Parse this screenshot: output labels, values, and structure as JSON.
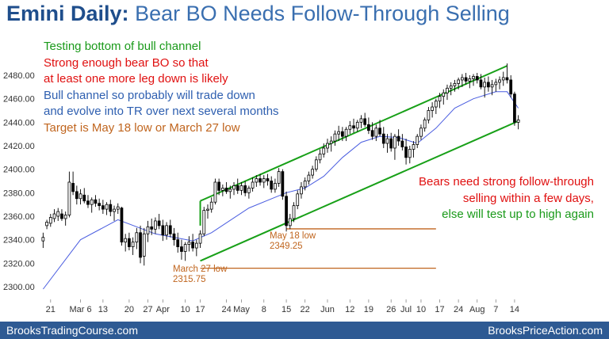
{
  "slide": {
    "title_bold": "Emini Daily:",
    "title_rest": "Bear BO Needs Follow-Through Selling",
    "footer_left": "BrooksTradingCourse.com",
    "footer_right": "BrooksPriceAction.com",
    "annotations": [
      {
        "text": "Testing bottom of bull channel",
        "color": "#1a9a1a"
      },
      {
        "text": "Strong enough bear BO so that",
        "color": "#e01010"
      },
      {
        "text": "at least one more leg down is likely",
        "color": "#e01010"
      },
      {
        "text": "Bull channel so probably will trade down",
        "color": "#2e5fb0"
      },
      {
        "text": "and evolve into TR over next several months",
        "color": "#2e5fb0"
      },
      {
        "text": "Target is May 18 low or March 27 low",
        "color": "#c0651e"
      }
    ],
    "right_notes": [
      {
        "text": "Bears need strong follow-through",
        "color": "#e01010"
      },
      {
        "text": "selling within a few days,",
        "color": "#e01010"
      },
      {
        "text": "else will test up to high again",
        "color": "#1a9a1a"
      }
    ],
    "level_labels": {
      "may18_name": "May 18 low",
      "may18_value": "2349.25",
      "mar27_name": "March 27 low",
      "mar27_value": "2315.75"
    }
  },
  "chart_data": {
    "type": "candlestick",
    "title": "",
    "ylim": [
      2292,
      2500
    ],
    "yticks": [
      "2300.00",
      "2320.00",
      "2340.00",
      "2360.00",
      "2380.00",
      "2400.00",
      "2420.00",
      "2440.00",
      "2460.00",
      "2480.00"
    ],
    "xticks": [
      "21",
      "Mar 6",
      "13",
      "20",
      "27",
      "Apr",
      "10",
      "17",
      "24",
      "May",
      "8",
      "15",
      "22",
      "Jun",
      "12",
      "19",
      "26",
      "Jul",
      "10",
      "17",
      "24",
      "Aug",
      "7",
      "14"
    ],
    "xtick_bar_index": [
      2,
      10,
      16,
      23,
      28,
      32,
      38,
      42,
      49,
      53,
      59,
      65,
      70,
      76,
      82,
      87,
      93,
      97,
      101,
      106,
      111,
      116,
      121,
      126
    ],
    "ohlc": [
      [
        2339,
        2346,
        2333,
        2342
      ],
      [
        2352,
        2357,
        2349,
        2355
      ],
      [
        2354,
        2362,
        2351,
        2359
      ],
      [
        2358,
        2366,
        2355,
        2362
      ],
      [
        2360,
        2367,
        2356,
        2364
      ],
      [
        2362,
        2366,
        2356,
        2358
      ],
      [
        2358,
        2364,
        2352,
        2361
      ],
      [
        2361,
        2398,
        2359,
        2389
      ],
      [
        2388,
        2398,
        2378,
        2381
      ],
      [
        2381,
        2386,
        2370,
        2375
      ],
      [
        2375,
        2383,
        2370,
        2379
      ],
      [
        2378,
        2384,
        2371,
        2373
      ],
      [
        2373,
        2378,
        2367,
        2370
      ],
      [
        2370,
        2376,
        2363,
        2374
      ],
      [
        2374,
        2378,
        2368,
        2371
      ],
      [
        2371,
        2375,
        2365,
        2369
      ],
      [
        2369,
        2374,
        2362,
        2366
      ],
      [
        2366,
        2372,
        2361,
        2370
      ],
      [
        2370,
        2374,
        2360,
        2364
      ],
      [
        2364,
        2369,
        2356,
        2366
      ],
      [
        2366,
        2371,
        2362,
        2368
      ],
      [
        2367,
        2368,
        2335,
        2338
      ],
      [
        2338,
        2345,
        2330,
        2341
      ],
      [
        2341,
        2346,
        2331,
        2334
      ],
      [
        2334,
        2342,
        2327,
        2338
      ],
      [
        2338,
        2350,
        2332,
        2346
      ],
      [
        2346,
        2352,
        2320,
        2325
      ],
      [
        2326,
        2350,
        2318,
        2345
      ],
      [
        2345,
        2356,
        2338,
        2351
      ],
      [
        2351,
        2358,
        2344,
        2349
      ],
      [
        2349,
        2359,
        2345,
        2356
      ],
      [
        2356,
        2362,
        2349,
        2352
      ],
      [
        2352,
        2357,
        2339,
        2344
      ],
      [
        2344,
        2355,
        2340,
        2352
      ],
      [
        2352,
        2357,
        2342,
        2345
      ],
      [
        2345,
        2350,
        2335,
        2340
      ],
      [
        2340,
        2346,
        2329,
        2334
      ],
      [
        2334,
        2340,
        2323,
        2330
      ],
      [
        2330,
        2338,
        2322,
        2336
      ],
      [
        2336,
        2343,
        2330,
        2338
      ],
      [
        2338,
        2345,
        2330,
        2333
      ],
      [
        2333,
        2340,
        2326,
        2337
      ],
      [
        2337,
        2348,
        2333,
        2345
      ],
      [
        2345,
        2368,
        2343,
        2365
      ],
      [
        2365,
        2370,
        2358,
        2366
      ],
      [
        2366,
        2376,
        2363,
        2372
      ],
      [
        2372,
        2392,
        2370,
        2389
      ],
      [
        2389,
        2392,
        2378,
        2382
      ],
      [
        2382,
        2387,
        2377,
        2384
      ],
      [
        2384,
        2389,
        2379,
        2381
      ],
      [
        2381,
        2386,
        2375,
        2383
      ],
      [
        2383,
        2389,
        2378,
        2386
      ],
      [
        2386,
        2392,
        2379,
        2382
      ],
      [
        2382,
        2389,
        2378,
        2386
      ],
      [
        2386,
        2390,
        2377,
        2380
      ],
      [
        2380,
        2386,
        2375,
        2384
      ],
      [
        2384,
        2393,
        2381,
        2389
      ],
      [
        2389,
        2395,
        2385,
        2392
      ],
      [
        2392,
        2396,
        2386,
        2389
      ],
      [
        2389,
        2395,
        2384,
        2392
      ],
      [
        2392,
        2396,
        2386,
        2390
      ],
      [
        2390,
        2394,
        2380,
        2383
      ],
      [
        2383,
        2392,
        2380,
        2388
      ],
      [
        2388,
        2401,
        2385,
        2398
      ],
      [
        2398,
        2400,
        2374,
        2377
      ],
      [
        2377,
        2381,
        2347,
        2352
      ],
      [
        2352,
        2362,
        2349,
        2358
      ],
      [
        2358,
        2372,
        2355,
        2369
      ],
      [
        2369,
        2382,
        2366,
        2379
      ],
      [
        2379,
        2389,
        2375,
        2385
      ],
      [
        2385,
        2393,
        2382,
        2390
      ],
      [
        2390,
        2398,
        2387,
        2395
      ],
      [
        2395,
        2403,
        2392,
        2400
      ],
      [
        2400,
        2411,
        2398,
        2408
      ],
      [
        2408,
        2417,
        2405,
        2413
      ],
      [
        2413,
        2422,
        2410,
        2418
      ],
      [
        2418,
        2426,
        2414,
        2422
      ],
      [
        2422,
        2428,
        2415,
        2424
      ],
      [
        2424,
        2433,
        2420,
        2430
      ],
      [
        2430,
        2437,
        2424,
        2432
      ],
      [
        2432,
        2436,
        2424,
        2428
      ],
      [
        2428,
        2436,
        2424,
        2434
      ],
      [
        2434,
        2441,
        2430,
        2437
      ],
      [
        2437,
        2443,
        2431,
        2435
      ],
      [
        2435,
        2442,
        2432,
        2440
      ],
      [
        2440,
        2446,
        2435,
        2443
      ],
      [
        2443,
        2448,
        2436,
        2438
      ],
      [
        2438,
        2444,
        2430,
        2433
      ],
      [
        2433,
        2440,
        2425,
        2428
      ],
      [
        2428,
        2438,
        2424,
        2435
      ],
      [
        2435,
        2442,
        2428,
        2430
      ],
      [
        2430,
        2436,
        2418,
        2422
      ],
      [
        2422,
        2430,
        2414,
        2426
      ],
      [
        2426,
        2431,
        2415,
        2418
      ],
      [
        2418,
        2430,
        2408,
        2428
      ],
      [
        2428,
        2434,
        2420,
        2424
      ],
      [
        2424,
        2430,
        2416,
        2419
      ],
      [
        2419,
        2426,
        2404,
        2410
      ],
      [
        2410,
        2420,
        2405,
        2417
      ],
      [
        2417,
        2424,
        2410,
        2421
      ],
      [
        2421,
        2430,
        2418,
        2428
      ],
      [
        2428,
        2438,
        2425,
        2435
      ],
      [
        2435,
        2444,
        2432,
        2442
      ],
      [
        2442,
        2453,
        2439,
        2450
      ],
      [
        2450,
        2457,
        2444,
        2453
      ],
      [
        2453,
        2460,
        2447,
        2458
      ],
      [
        2458,
        2465,
        2452,
        2462
      ],
      [
        2462,
        2468,
        2455,
        2465
      ],
      [
        2465,
        2472,
        2459,
        2469
      ],
      [
        2469,
        2474,
        2463,
        2471
      ],
      [
        2471,
        2476,
        2466,
        2473
      ],
      [
        2473,
        2478,
        2468,
        2476
      ],
      [
        2476,
        2481,
        2470,
        2478
      ],
      [
        2478,
        2482,
        2472,
        2475
      ],
      [
        2475,
        2480,
        2469,
        2477
      ],
      [
        2477,
        2481,
        2471,
        2479
      ],
      [
        2479,
        2482,
        2473,
        2476
      ],
      [
        2476,
        2481,
        2468,
        2470
      ],
      [
        2470,
        2478,
        2461,
        2474
      ],
      [
        2474,
        2479,
        2466,
        2470
      ],
      [
        2470,
        2476,
        2463,
        2472
      ],
      [
        2472,
        2477,
        2466,
        2474
      ],
      [
        2474,
        2479,
        2468,
        2476
      ],
      [
        2476,
        2483,
        2471,
        2478
      ],
      [
        2478,
        2490,
        2473,
        2476
      ],
      [
        2476,
        2480,
        2461,
        2464
      ],
      [
        2464,
        2466,
        2437,
        2440
      ],
      [
        2440,
        2446,
        2434,
        2442
      ]
    ],
    "moving_average": [
      [
        0,
        2298
      ],
      [
        10,
        2340
      ],
      [
        20,
        2357
      ],
      [
        30,
        2345
      ],
      [
        40,
        2339
      ],
      [
        45,
        2346
      ],
      [
        55,
        2367
      ],
      [
        65,
        2380
      ],
      [
        70,
        2384
      ],
      [
        75,
        2394
      ],
      [
        80,
        2410
      ],
      [
        85,
        2423
      ],
      [
        90,
        2428
      ],
      [
        95,
        2427
      ],
      [
        100,
        2422
      ],
      [
        105,
        2435
      ],
      [
        110,
        2452
      ],
      [
        115,
        2460
      ],
      [
        121,
        2466
      ],
      [
        124,
        2466
      ],
      [
        127,
        2452
      ]
    ],
    "channel_top": {
      "from": [
        42,
        2373
      ],
      "to": [
        124,
        2488
      ]
    },
    "channel_bottom": {
      "from": [
        42,
        2322
      ],
      "to": [
        127,
        2441
      ]
    },
    "levels": [
      {
        "name": "May 18 low",
        "value": 2349.25,
        "from": 65,
        "to": 105
      },
      {
        "name": "March 27 low",
        "value": 2315.75,
        "from": 42,
        "to": 105
      }
    ],
    "colors": {
      "up": "#ffffff",
      "down": "#000000",
      "wick": "#000000",
      "ma": "#4a5de0",
      "channel": "#18a018",
      "level": "#c0651e",
      "axis_text": "#333333"
    }
  }
}
